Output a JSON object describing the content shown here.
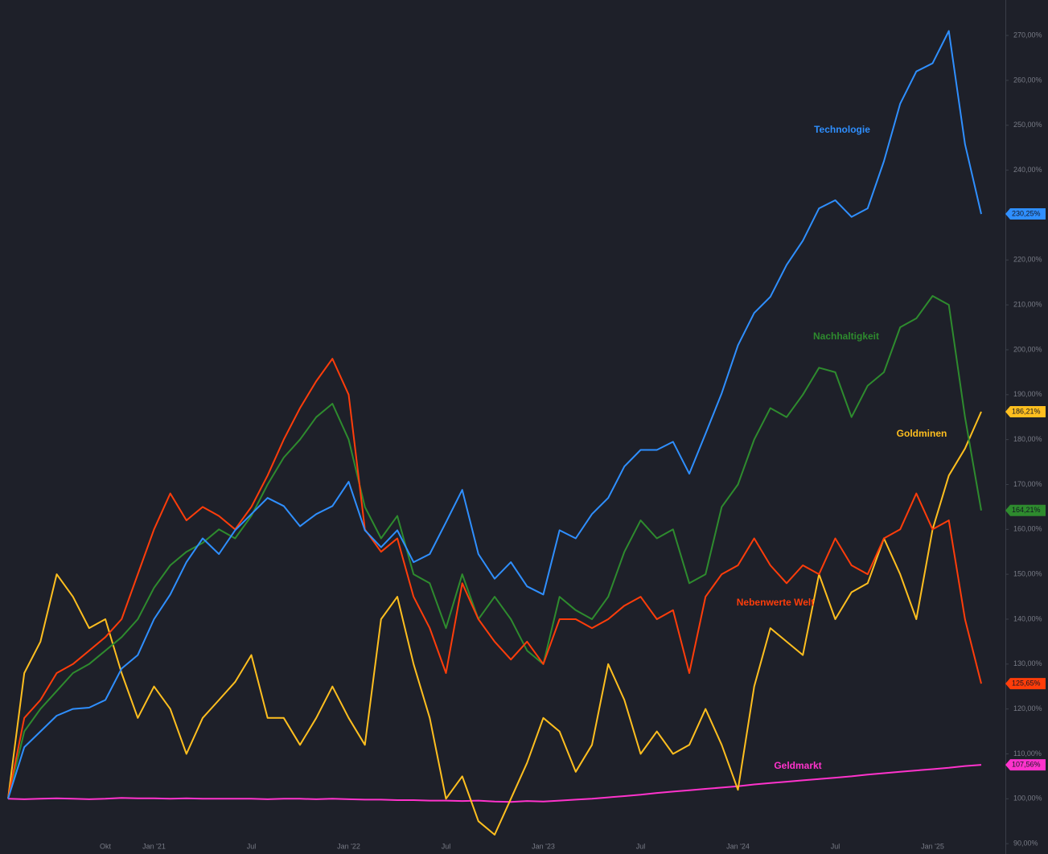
{
  "chart_data": {
    "type": "line",
    "categories": [
      null,
      null,
      null,
      null,
      null,
      null,
      "Okt",
      null,
      null,
      "Jan '21",
      null,
      null,
      null,
      null,
      null,
      "Jul",
      null,
      null,
      null,
      null,
      null,
      "Jan '22",
      null,
      null,
      null,
      null,
      null,
      "Jul",
      null,
      null,
      null,
      null,
      null,
      "Jan '23",
      null,
      null,
      null,
      null,
      null,
      "Jul",
      null,
      null,
      null,
      null,
      null,
      "Jan '24",
      null,
      null,
      null,
      null,
      null,
      "Jul",
      null,
      null,
      null,
      null,
      null,
      "Jan '25",
      null,
      null,
      null
    ],
    "series": [
      {
        "name": "Technologie",
        "color": "#2f8fff",
        "values": [
          100,
          111.5,
          115,
          118.5,
          120,
          120.3,
          122,
          129,
          132,
          140,
          145.5,
          152.7,
          158,
          154.5,
          159.8,
          163.4,
          167,
          165.2,
          160.7,
          163.4,
          165.2,
          170.6,
          159.8,
          156,
          159.8,
          152.7,
          154.5,
          161.6,
          168.8,
          154.5,
          149,
          152.7,
          147.3,
          145.5,
          159.8,
          158,
          163.4,
          167,
          174,
          177.7,
          177.7,
          179.5,
          172.4,
          181.3,
          190.3,
          201,
          208.2,
          211.8,
          218.9,
          224.3,
          231.5,
          233.3,
          229.6,
          231.5,
          242,
          254.8,
          262,
          263.8,
          271,
          245.8,
          230.25
        ],
        "value_labels": [
          null,
          null,
          null,
          null,
          null,
          null,
          null,
          null,
          null,
          null,
          null,
          null,
          null,
          null,
          null,
          null,
          null,
          null,
          null,
          null,
          null,
          null,
          null,
          null,
          null,
          null,
          null,
          null,
          null,
          null,
          null,
          null,
          null,
          null,
          null,
          null,
          null,
          null,
          null,
          null,
          null,
          null,
          null,
          null,
          null,
          null,
          null,
          null,
          null,
          null,
          null,
          null,
          null,
          null,
          null,
          null,
          null,
          null,
          null,
          null,
          "230,25%"
        ]
      },
      {
        "name": "Nachhaltigkeit",
        "color": "#2e8b2e",
        "values": [
          100,
          115,
          120,
          124,
          128,
          130,
          133,
          136,
          140,
          147,
          152,
          155,
          157,
          160,
          158,
          163,
          170,
          176,
          180,
          185,
          188,
          180,
          165,
          158,
          163,
          150,
          148,
          138,
          150,
          140,
          145,
          140,
          133,
          130,
          145,
          142,
          140,
          145,
          155,
          162,
          158,
          160,
          148,
          150,
          165,
          170,
          180,
          187,
          185,
          190,
          196,
          195,
          185,
          192,
          195,
          205,
          207,
          212,
          210,
          185,
          164.21
        ],
        "value_labels": [
          null,
          null,
          null,
          null,
          null,
          null,
          null,
          null,
          null,
          null,
          null,
          null,
          null,
          null,
          null,
          null,
          null,
          null,
          null,
          null,
          null,
          null,
          null,
          null,
          null,
          null,
          null,
          null,
          null,
          null,
          null,
          null,
          null,
          null,
          null,
          null,
          null,
          null,
          null,
          null,
          null,
          null,
          null,
          null,
          null,
          null,
          null,
          null,
          null,
          null,
          null,
          null,
          null,
          null,
          null,
          null,
          null,
          null,
          null,
          null,
          "164,21%"
        ]
      },
      {
        "name": "Nebenwerte Welt",
        "color": "#ff3d0a",
        "values": [
          100,
          118,
          122,
          128,
          130,
          133,
          136,
          140,
          150,
          160,
          168,
          162,
          165,
          163,
          160,
          165,
          172,
          180,
          187,
          193,
          198,
          190,
          160,
          155,
          158,
          145,
          138,
          128,
          148,
          140,
          135,
          131,
          135,
          130,
          140,
          140,
          138,
          140,
          143,
          145,
          140,
          142,
          128,
          145,
          150,
          152,
          158,
          152,
          148,
          152,
          150,
          158,
          152,
          150,
          158,
          160,
          168,
          160,
          162,
          140,
          125.65
        ],
        "value_labels": [
          null,
          null,
          null,
          null,
          null,
          null,
          null,
          null,
          null,
          null,
          null,
          null,
          null,
          null,
          null,
          null,
          null,
          null,
          null,
          null,
          null,
          null,
          null,
          null,
          null,
          null,
          null,
          null,
          null,
          null,
          null,
          null,
          null,
          null,
          null,
          null,
          null,
          null,
          null,
          null,
          null,
          null,
          null,
          null,
          null,
          null,
          null,
          null,
          null,
          null,
          null,
          null,
          null,
          null,
          null,
          null,
          null,
          null,
          null,
          null,
          "125,65%"
        ]
      },
      {
        "name": "Goldminen",
        "color": "#ffbf1f",
        "values": [
          100,
          128,
          135,
          150,
          145,
          138,
          140,
          128,
          118,
          125,
          120,
          110,
          118,
          122,
          126,
          132,
          118,
          118,
          112,
          118,
          125,
          118,
          112,
          140,
          145,
          130,
          118,
          100,
          105,
          95,
          92,
          100,
          108,
          118,
          115,
          106,
          112,
          130,
          122,
          110,
          115,
          110,
          112,
          120,
          112,
          102,
          125,
          138,
          135,
          132,
          150,
          140,
          146,
          148,
          158,
          150,
          140,
          160,
          172,
          178,
          186.21
        ],
        "value_labels": [
          null,
          null,
          null,
          null,
          null,
          null,
          null,
          null,
          null,
          null,
          null,
          null,
          null,
          null,
          null,
          null,
          null,
          null,
          null,
          null,
          null,
          null,
          null,
          null,
          null,
          null,
          null,
          null,
          null,
          null,
          null,
          null,
          null,
          null,
          null,
          null,
          null,
          null,
          null,
          null,
          null,
          null,
          null,
          null,
          null,
          null,
          null,
          null,
          null,
          null,
          null,
          null,
          null,
          null,
          null,
          null,
          null,
          null,
          null,
          null,
          "186,21%"
        ]
      },
      {
        "name": "Geldmarkt",
        "color": "#ff33cc",
        "values": [
          100,
          99.9,
          100,
          100.1,
          100,
          99.9,
          100,
          100.2,
          100.1,
          100.1,
          100,
          100.1,
          100,
          100,
          100,
          100,
          99.9,
          100,
          100,
          99.9,
          100,
          99.9,
          99.8,
          99.8,
          99.7,
          99.7,
          99.6,
          99.6,
          99.5,
          99.6,
          99.4,
          99.3,
          99.5,
          99.4,
          99.6,
          99.8,
          100,
          100.3,
          100.6,
          100.9,
          101.3,
          101.6,
          101.9,
          102.2,
          102.5,
          102.8,
          103.2,
          103.5,
          103.8,
          104.1,
          104.4,
          104.7,
          105,
          105.4,
          105.7,
          106,
          106.3,
          106.6,
          106.9,
          107.3,
          107.56
        ],
        "value_labels": [
          null,
          null,
          null,
          null,
          null,
          null,
          null,
          null,
          null,
          null,
          null,
          null,
          null,
          null,
          null,
          null,
          null,
          null,
          null,
          null,
          null,
          null,
          null,
          null,
          null,
          null,
          null,
          null,
          null,
          null,
          null,
          null,
          null,
          null,
          null,
          null,
          null,
          null,
          null,
          null,
          null,
          null,
          null,
          null,
          null,
          null,
          null,
          null,
          null,
          null,
          null,
          null,
          null,
          null,
          null,
          null,
          null,
          null,
          null,
          null,
          "107,56%"
        ]
      }
    ],
    "ylim": [
      87.7,
      277.9
    ],
    "yticks": [
      {
        "value": 90,
        "label": "90,00%"
      },
      {
        "value": 100,
        "label": "100,00%"
      },
      {
        "value": 110,
        "label": "110,00%"
      },
      {
        "value": 120,
        "label": "120,00%"
      },
      {
        "value": 130,
        "label": "130,00%"
      },
      {
        "value": 140,
        "label": "140,00%"
      },
      {
        "value": 150,
        "label": "150,00%"
      },
      {
        "value": 160,
        "label": "160,00%"
      },
      {
        "value": 170,
        "label": "170,00%"
      },
      {
        "value": 180,
        "label": "180,00%"
      },
      {
        "value": 190,
        "label": "190,00%"
      },
      {
        "value": 200,
        "label": "200,00%"
      },
      {
        "value": 210,
        "label": "210,00%"
      },
      {
        "value": 220,
        "label": "220,00%"
      },
      {
        "value": 230,
        "label": "230,00%"
      },
      {
        "value": 240,
        "label": "240,00%"
      },
      {
        "value": 250,
        "label": "250,00%"
      },
      {
        "value": 260,
        "label": "260,00%"
      },
      {
        "value": 270,
        "label": "270,00%"
      }
    ],
    "grid": false
  }
}
